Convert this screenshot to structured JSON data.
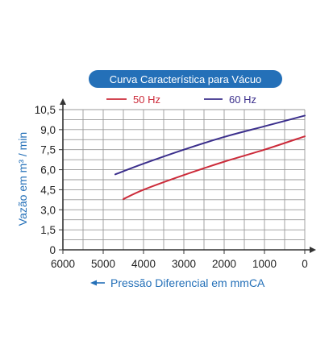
{
  "chart_data": {
    "type": "line",
    "title": "Curva Característica para Vácuo",
    "ylabel": "Vazão em m³ / min",
    "xlabel": "Pressão Diferencial em mmCA",
    "x_reversed": true,
    "xlim": [
      6000,
      0
    ],
    "ylim": [
      0,
      10.5
    ],
    "x_ticks": [
      6000,
      5000,
      4000,
      3000,
      2000,
      1000,
      0
    ],
    "x_tick_labels": [
      "6000",
      "5000",
      "4000",
      "3000",
      "2000",
      "1000",
      "0"
    ],
    "y_ticks": [
      0,
      1.5,
      3,
      4.5,
      6,
      7.5,
      9,
      10.5
    ],
    "y_tick_labels": [
      "0",
      "1,5",
      "3,0",
      "4,5",
      "6,0",
      "7,5",
      "9,0",
      "10,5"
    ],
    "grid": true,
    "legend_position": "top-center",
    "series": [
      {
        "name": "50 Hz",
        "color": "#cc2b3a",
        "points": [
          [
            4500,
            3.8
          ],
          [
            4000,
            4.5
          ],
          [
            3000,
            5.6
          ],
          [
            2000,
            6.6
          ],
          [
            1000,
            7.5
          ],
          [
            0,
            8.5
          ]
        ]
      },
      {
        "name": "60 Hz",
        "color": "#3b2f8c",
        "points": [
          [
            4700,
            5.65
          ],
          [
            4000,
            6.45
          ],
          [
            3000,
            7.5
          ],
          [
            2000,
            8.45
          ],
          [
            1000,
            9.25
          ],
          [
            0,
            10.05
          ]
        ]
      }
    ]
  },
  "colors": {
    "title_pill": "#2470b8",
    "axis_text": "#2470b8",
    "grid": "#999999",
    "axis": "#333333"
  }
}
